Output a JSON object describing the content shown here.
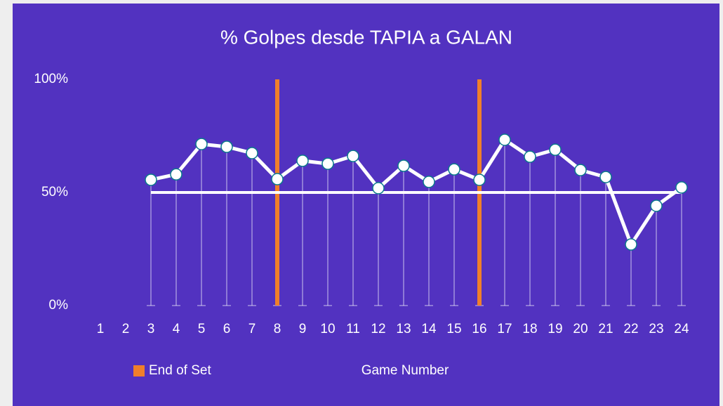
{
  "chart_data": {
    "type": "line",
    "title": "% Golpes desde TAPIA a GALAN",
    "x_label": "Game Number",
    "categories": [
      "1",
      "2",
      "3",
      "4",
      "5",
      "6",
      "7",
      "8",
      "9",
      "10",
      "11",
      "12",
      "13",
      "14",
      "15",
      "16",
      "17",
      "18",
      "19",
      "20",
      "21",
      "22",
      "23",
      "24"
    ],
    "series": [
      {
        "color": "#ffffff",
        "values": [
          null,
          null,
          55.6,
          58,
          71.4,
          70.2,
          67.4,
          55.9,
          64,
          62.7,
          66.1,
          51.9,
          61.8,
          54.7,
          60.2,
          55.6,
          73.3,
          65.8,
          68.9,
          59.9,
          56.8,
          27,
          44.1,
          52.2
        ]
      },
      {
        "type": "reference",
        "color": "#ffffff",
        "values": [
          null,
          null,
          50,
          50,
          50,
          50,
          50,
          50,
          50,
          50,
          50,
          50,
          50,
          50,
          50,
          50,
          50,
          50,
          50,
          50,
          50,
          50,
          50,
          50
        ]
      },
      {
        "type": "bar",
        "name": "End of Set",
        "color": "#f07f2a",
        "values": [
          null,
          null,
          null,
          null,
          null,
          null,
          null,
          100,
          null,
          null,
          null,
          null,
          null,
          null,
          null,
          100,
          null,
          null,
          null,
          null,
          null,
          null,
          null,
          null
        ]
      }
    ],
    "ylim": [
      0,
      100
    ],
    "yticks": [
      {
        "value": 0,
        "label": "0%"
      },
      {
        "value": 50,
        "label": "50%"
      },
      {
        "value": 100,
        "label": "100%"
      }
    ],
    "background": "#5232c0",
    "grid": false
  }
}
